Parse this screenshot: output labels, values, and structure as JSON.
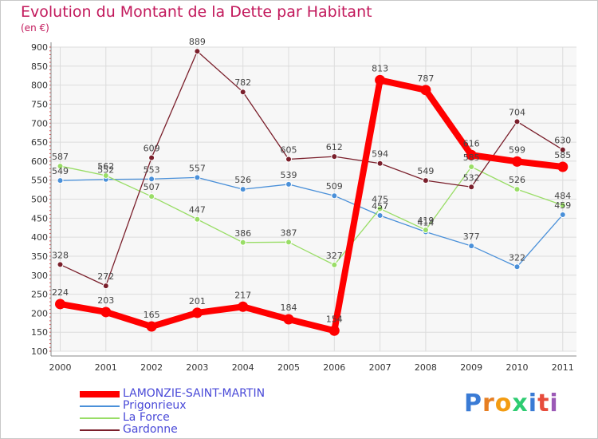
{
  "title": "Evolution du Montant de la Dette par Habitant",
  "unit": "(en €)",
  "chart_data": {
    "type": "line",
    "title": "Evolution du Montant de la Dette par Habitant",
    "ylabel": "(en €)",
    "xlabel": "",
    "x": [
      "2000",
      "2001",
      "2002",
      "2003",
      "2004",
      "2005",
      "2006",
      "2007",
      "2008",
      "2009",
      "2010",
      "2011"
    ],
    "ylim": [
      100,
      900
    ],
    "yticks": [
      100,
      150,
      200,
      250,
      300,
      350,
      400,
      450,
      500,
      550,
      600,
      650,
      700,
      750,
      800,
      850,
      900
    ],
    "grid": true,
    "legend_position": "bottom-left",
    "series": [
      {
        "name": "LAMONZIE-SAINT-MARTIN",
        "color": "#ff0000",
        "values": [
          224,
          203,
          165,
          201,
          217,
          184,
          154,
          813,
          787,
          616,
          599,
          585
        ]
      },
      {
        "name": "Prigonrieux",
        "color": "#4a90d9",
        "values": [
          549,
          552,
          553,
          557,
          526,
          539,
          509,
          457,
          414,
          377,
          322,
          459
        ]
      },
      {
        "name": "La Force",
        "color": "#99dd66",
        "values": [
          587,
          562,
          507,
          447,
          386,
          387,
          327,
          475,
          419,
          585,
          526,
          484
        ]
      },
      {
        "name": "Gardonne",
        "color": "#7a1f2b",
        "values": [
          328,
          272,
          609,
          889,
          782,
          605,
          612,
          594,
          549,
          532,
          704,
          630
        ]
      }
    ]
  },
  "logo": {
    "letters": [
      "P",
      "r",
      "o",
      "x",
      "i",
      "t",
      "i"
    ],
    "colors": [
      "#3a7bd5",
      "#e67e22",
      "#f39c12",
      "#2ecc71",
      "#3a7bd5",
      "#e74c3c",
      "#9b59b6"
    ]
  }
}
